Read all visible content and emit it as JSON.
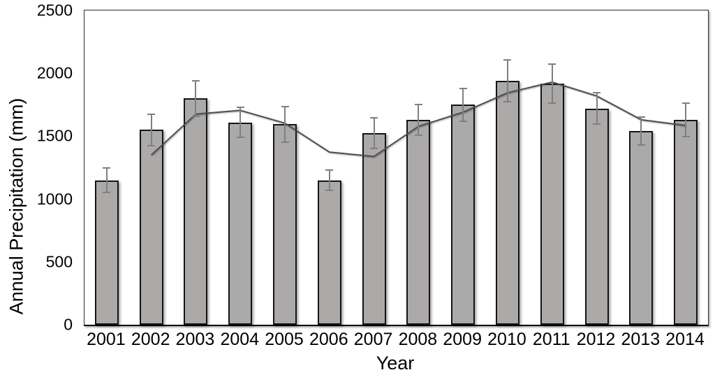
{
  "chart_data": {
    "type": "bar",
    "title": "",
    "xlabel": "Year",
    "ylabel": "Annual Precipitation (mm)",
    "categories": [
      "2001",
      "2002",
      "2003",
      "2004",
      "2005",
      "2006",
      "2007",
      "2008",
      "2009",
      "2010",
      "2011",
      "2012",
      "2013",
      "2014"
    ],
    "series": [
      {
        "name": "annual-precipitation-bars",
        "type": "bar",
        "values": [
          1150,
          1550,
          1800,
          1610,
          1595,
          1150,
          1525,
          1630,
          1750,
          1940,
          1920,
          1720,
          1540,
          1630
        ],
        "error_bars": [
          95,
          125,
          140,
          120,
          140,
          80,
          120,
          120,
          130,
          165,
          155,
          125,
          110,
          135
        ]
      },
      {
        "name": "moving-average-trend-line",
        "type": "line",
        "start_category": "2002",
        "values": [
          1350,
          1675,
          1705,
          1603,
          1373,
          1338,
          1578,
          1690,
          1845,
          1930,
          1820,
          1630,
          1585
        ]
      }
    ],
    "ylim": [
      0,
      2500
    ],
    "yticks": [
      "0",
      "500",
      "1000",
      "1500",
      "2000",
      "2500"
    ],
    "grid": false,
    "legend": false,
    "colors": {
      "bar_fill": "#aca9a9",
      "bar_border": "#141414",
      "error_bar": "#7f7f7f",
      "trend_line": "#4d4d4d",
      "axis_frame": "#2b2b2b",
      "text": "#000000",
      "background": "#ffffff"
    }
  }
}
